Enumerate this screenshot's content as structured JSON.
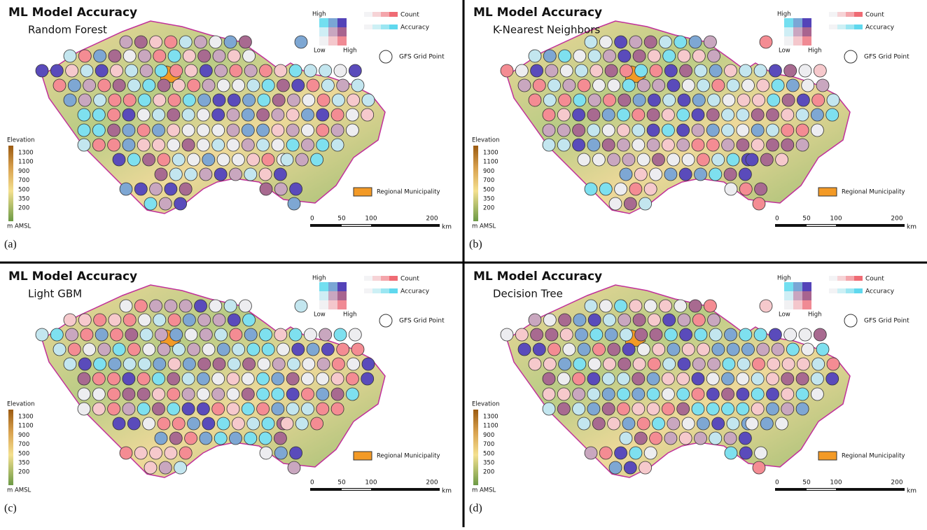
{
  "panels": [
    {
      "title": "ML Model Accuracy",
      "subtitle": "Random Forest",
      "label": "(a)"
    },
    {
      "title": "ML Model Accuracy",
      "subtitle": "K-Nearest Neighbors",
      "label": "(b)"
    },
    {
      "title": "ML Model Accuracy",
      "subtitle": "Light GBM",
      "label": "(c)"
    },
    {
      "title": "ML Model Accuracy",
      "subtitle": "Decision Tree",
      "label": "(d)"
    }
  ],
  "legend": {
    "high_top": "High",
    "low": "Low",
    "high_right": "High",
    "count": "Count",
    "accuracy": "Accuracy",
    "grid_point": "GFS Grid Point",
    "municipality": "Regional Municipality",
    "elevation_title": "Elevation",
    "elevation_ticks": [
      "1300",
      "1100",
      "900",
      "700",
      "500",
      "350",
      "200"
    ],
    "elevation_unit": "m AMSL",
    "scale_ticks": [
      "0",
      "50",
      "100",
      "200"
    ],
    "scale_unit": "km"
  }
}
